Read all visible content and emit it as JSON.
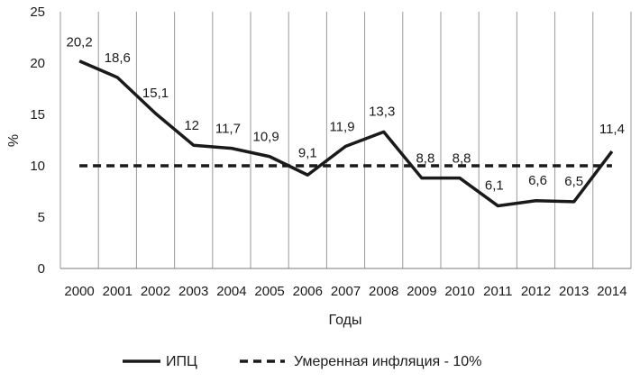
{
  "chart_data": {
    "type": "line",
    "title": "",
    "xlabel": "Годы",
    "ylabel": "%",
    "x": [
      "2000",
      "2001",
      "2002",
      "2003",
      "2004",
      "2005",
      "2006",
      "2007",
      "2008",
      "2009",
      "2010",
      "2011",
      "2012",
      "2013",
      "2014"
    ],
    "y_ticks": [
      "0",
      "5",
      "10",
      "15",
      "20",
      "25"
    ],
    "ylim": [
      0,
      25
    ],
    "grid": "vertical lines between categories",
    "legend_position": "bottom",
    "series": [
      {
        "name": "ИПЦ",
        "style": "solid",
        "color": "#1a1a1a",
        "values": [
          20.2,
          18.6,
          15.1,
          12,
          11.7,
          10.9,
          9.1,
          11.9,
          13.3,
          8.8,
          8.8,
          6.1,
          6.6,
          6.5,
          11.4
        ],
        "labels": [
          "20,2",
          "18,6",
          "15,1",
          "12",
          "11,7",
          "10,9",
          "9,1",
          "11,9",
          "13,3",
          "8,8",
          "8,8",
          "6,1",
          "6,6",
          "6,5",
          "11,4"
        ]
      },
      {
        "name": "Умеренная инфляция - 10%",
        "style": "dashed",
        "color": "#1a1a1a",
        "values": [
          10,
          10,
          10,
          10,
          10,
          10,
          10,
          10,
          10,
          10,
          10,
          10,
          10,
          10,
          10
        ]
      }
    ]
  }
}
